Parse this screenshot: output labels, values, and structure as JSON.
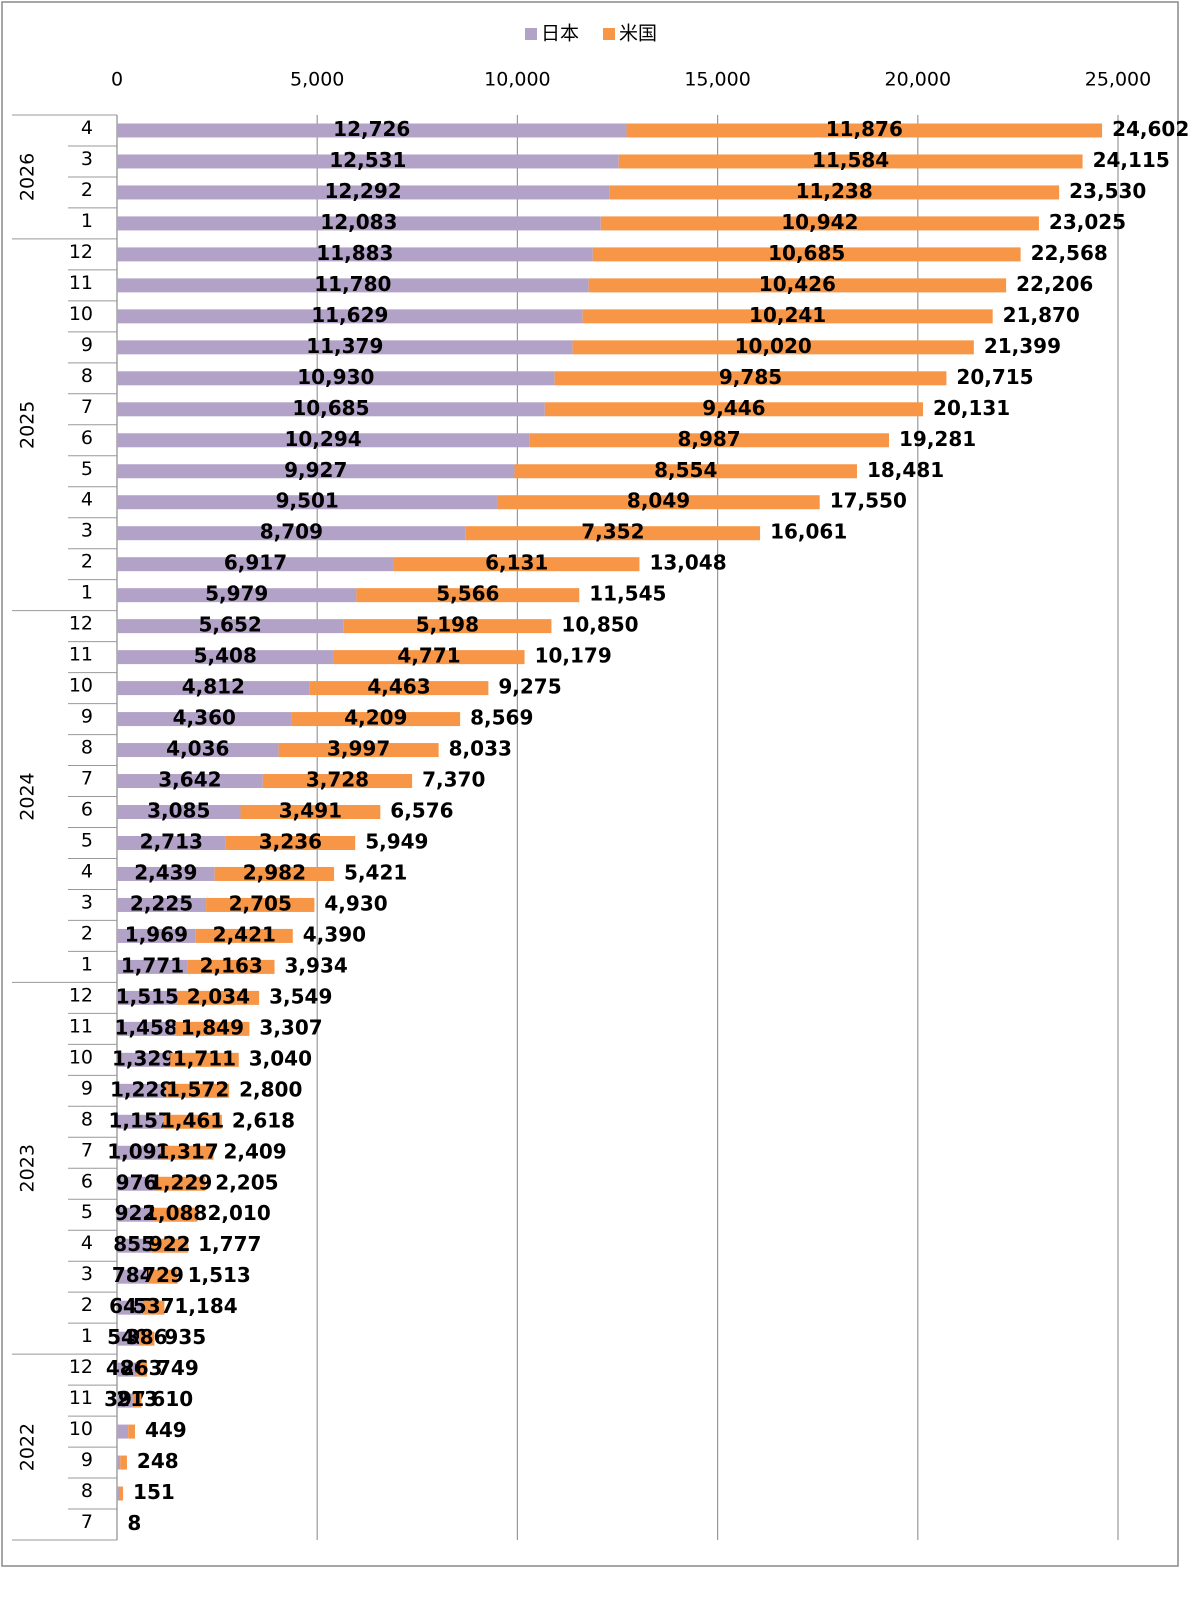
{
  "chart_data": {
    "type": "stacked-barh",
    "groups": [
      {
        "name": "2026",
        "categories": [
          "4",
          "3",
          "2",
          "1"
        ]
      },
      {
        "name": "2025",
        "categories": [
          "12",
          "11",
          "10",
          "9",
          "8",
          "7",
          "6",
          "5",
          "4",
          "3",
          "2",
          "1"
        ]
      },
      {
        "name": "2024",
        "categories": [
          "12",
          "11",
          "10",
          "9",
          "8",
          "7",
          "6",
          "5",
          "4",
          "3",
          "2",
          "1"
        ]
      },
      {
        "name": "2023",
        "categories": [
          "12",
          "11",
          "10",
          "9",
          "8",
          "7",
          "6",
          "5",
          "4",
          "3",
          "2",
          "1"
        ]
      },
      {
        "name": "2022",
        "categories": [
          "12",
          "11",
          "10",
          "9",
          "8",
          "7"
        ]
      }
    ],
    "series": [
      {
        "name": "日本",
        "color": "#b3a2c7",
        "values": [
          12726,
          12531,
          12292,
          12083,
          11883,
          11780,
          11629,
          11379,
          10930,
          10685,
          10294,
          9927,
          9501,
          8709,
          6917,
          5979,
          5652,
          5408,
          4812,
          4360,
          4036,
          3642,
          3085,
          2713,
          2439,
          2225,
          1969,
          1771,
          1515,
          1458,
          1329,
          1228,
          1157,
          1092,
          976,
          922,
          855,
          784,
          647,
          549,
          486,
          397,
          280,
          80,
          50,
          8
        ],
        "value_labels": [
          "12,726",
          "12,531",
          "12,292",
          "12,083",
          "11,883",
          "11,780",
          "11,629",
          "11,379",
          "10,930",
          "10,685",
          "10,294",
          "9,927",
          "9,501",
          "8,709",
          "6,917",
          "5,979",
          "5,652",
          "5,408",
          "4,812",
          "4,360",
          "4,036",
          "3,642",
          "3,085",
          "2,713",
          "2,439",
          "2,225",
          "1,969",
          "1,771",
          "1,515",
          "1,458",
          "1,329",
          "1,228",
          "1,157",
          "1,092",
          "976",
          "922",
          "855",
          "784",
          "647",
          "549",
          "486",
          "397",
          null,
          null,
          null,
          null
        ]
      },
      {
        "name": "米国",
        "color": "#f79646",
        "values": [
          11876,
          11584,
          11238,
          10942,
          10685,
          10426,
          10241,
          10020,
          9785,
          9446,
          8987,
          8554,
          8049,
          7352,
          6131,
          5566,
          5198,
          4771,
          4463,
          4209,
          3997,
          3728,
          3491,
          3236,
          2982,
          2705,
          2421,
          2163,
          2034,
          1849,
          1711,
          1572,
          1461,
          1317,
          1229,
          1088,
          922,
          729,
          537,
          386,
          263,
          213,
          169,
          168,
          101,
          0
        ],
        "value_labels": [
          "11,876",
          "11,584",
          "11,238",
          "10,942",
          "10,685",
          "10,426",
          "10,241",
          "10,020",
          "9,785",
          "9,446",
          "8,987",
          "8,554",
          "8,049",
          "7,352",
          "6,131",
          "5,566",
          "5,198",
          "4,771",
          "4,463",
          "4,209",
          "3,997",
          "3,728",
          "3,491",
          "3,236",
          "2,982",
          "2,705",
          "2,421",
          "2,163",
          "2,034",
          "1,849",
          "1,711",
          "1,572",
          "1,461",
          "1,317",
          "1,229",
          "1,088",
          "922",
          "729",
          "537",
          "386",
          "263",
          "213",
          null,
          null,
          null,
          null
        ]
      }
    ],
    "totals": {
      "values": [
        24602,
        24115,
        23530,
        23025,
        22568,
        22206,
        21870,
        21399,
        20715,
        20131,
        19281,
        18481,
        17550,
        16061,
        13048,
        11545,
        10850,
        10179,
        9275,
        8569,
        8033,
        7370,
        6576,
        5949,
        5421,
        4930,
        4390,
        3934,
        3549,
        3307,
        3040,
        2800,
        2618,
        2409,
        2205,
        2010,
        1777,
        1513,
        1184,
        935,
        749,
        610,
        449,
        248,
        151,
        8
      ],
      "value_labels": [
        "24,602",
        "24,115",
        "23,530",
        "23,025",
        "22,568",
        "22,206",
        "21,870",
        "21,399",
        "20,715",
        "20,131",
        "19,281",
        "18,481",
        "17,550",
        "16,061",
        "13,048",
        "11,545",
        "10,850",
        "10,179",
        "9,275",
        "8,569",
        "8,033",
        "7,370",
        "6,576",
        "5,949",
        "5,421",
        "4,930",
        "4,390",
        "3,934",
        "3,549",
        "3,307",
        "3,040",
        "2,800",
        "2,618",
        "2,409",
        "2,205",
        "2,010",
        "1,777",
        "1,513",
        "1,184",
        "935",
        "749",
        "610",
        "449",
        "248",
        "151",
        "8"
      ]
    },
    "xlim": [
      0,
      25000
    ],
    "xticks": [
      0,
      {
        "value": 5000,
        "label": "5,000"
      },
      {
        "value": 10000,
        "label": "10,000"
      },
      {
        "value": 15000,
        "label": "15,000"
      },
      {
        "value": 20000,
        "label": "20,000"
      },
      {
        "value": 25000,
        "label": "25,000"
      }
    ],
    "grid": true,
    "legend": "top"
  }
}
